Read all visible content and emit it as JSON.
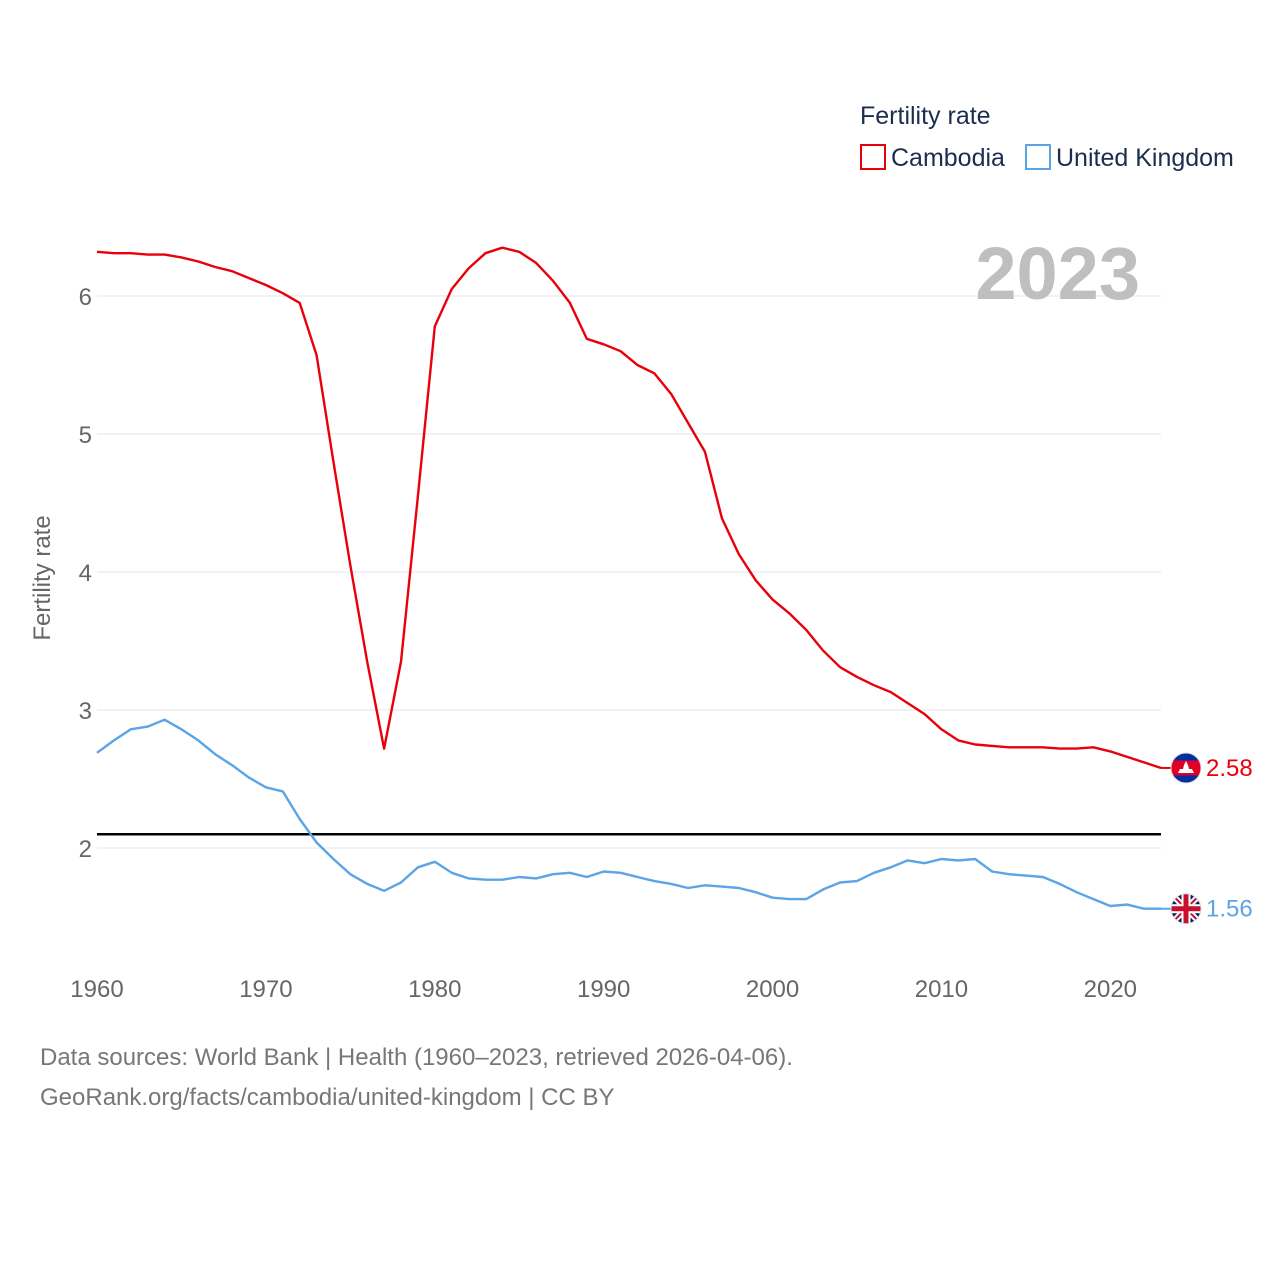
{
  "chart_data": {
    "type": "line",
    "legend_title": "Fertility rate",
    "ylabel": "Fertility rate",
    "year_label": "2023",
    "xlim": [
      1960,
      2023
    ],
    "ylim": [
      1.3,
      6.4
    ],
    "x_ticks": [
      1960,
      1970,
      1980,
      1990,
      2000,
      2010,
      2020
    ],
    "y_ticks": [
      2,
      3,
      4,
      5,
      6
    ],
    "reference_line": 2.1,
    "years": [
      1960,
      1961,
      1962,
      1963,
      1964,
      1965,
      1966,
      1967,
      1968,
      1969,
      1970,
      1971,
      1972,
      1973,
      1974,
      1975,
      1976,
      1977,
      1978,
      1979,
      1980,
      1981,
      1982,
      1983,
      1984,
      1985,
      1986,
      1987,
      1988,
      1989,
      1990,
      1991,
      1992,
      1993,
      1994,
      1995,
      1996,
      1997,
      1998,
      1999,
      2000,
      2001,
      2002,
      2003,
      2004,
      2005,
      2006,
      2007,
      2008,
      2009,
      2010,
      2011,
      2012,
      2013,
      2014,
      2015,
      2016,
      2017,
      2018,
      2019,
      2020,
      2021,
      2022,
      2023
    ],
    "series": [
      {
        "name": "Cambodia",
        "color": "#e8000b",
        "end_label": "2.58",
        "flag": "cambodia-flag-icon",
        "values": [
          6.32,
          6.31,
          6.31,
          6.3,
          6.3,
          6.28,
          6.25,
          6.21,
          6.18,
          6.13,
          6.08,
          6.02,
          5.95,
          5.57,
          4.8,
          4.05,
          3.35,
          2.72,
          3.35,
          4.55,
          5.78,
          6.05,
          6.2,
          6.31,
          6.35,
          6.32,
          6.24,
          6.11,
          5.95,
          5.69,
          5.65,
          5.6,
          5.5,
          5.44,
          5.29,
          5.08,
          4.87,
          4.39,
          4.13,
          3.94,
          3.8,
          3.7,
          3.58,
          3.43,
          3.31,
          3.24,
          3.18,
          3.13,
          3.05,
          2.97,
          2.86,
          2.78,
          2.75,
          2.74,
          2.73,
          2.73,
          2.73,
          2.72,
          2.72,
          2.73,
          2.7,
          2.66,
          2.62,
          2.58
        ]
      },
      {
        "name": "United Kingdom",
        "color": "#5ba4e6",
        "end_label": "1.56",
        "flag": "united-kingdom-flag-icon",
        "values": [
          2.69,
          2.78,
          2.86,
          2.88,
          2.93,
          2.86,
          2.78,
          2.68,
          2.6,
          2.51,
          2.44,
          2.41,
          2.21,
          2.04,
          1.92,
          1.81,
          1.74,
          1.69,
          1.75,
          1.86,
          1.9,
          1.82,
          1.78,
          1.77,
          1.77,
          1.79,
          1.78,
          1.81,
          1.82,
          1.79,
          1.83,
          1.82,
          1.79,
          1.76,
          1.74,
          1.71,
          1.73,
          1.72,
          1.71,
          1.68,
          1.64,
          1.63,
          1.63,
          1.7,
          1.75,
          1.76,
          1.82,
          1.86,
          1.91,
          1.89,
          1.92,
          1.91,
          1.92,
          1.83,
          1.81,
          1.8,
          1.79,
          1.74,
          1.68,
          1.63,
          1.58,
          1.59,
          1.56,
          1.56
        ]
      }
    ]
  },
  "footer": {
    "source": "Data sources: World Bank | Health (1960–2023, retrieved 2026-04-06).",
    "credit": "GeoRank.org/facts/cambodia/united-kingdom | CC BY"
  }
}
